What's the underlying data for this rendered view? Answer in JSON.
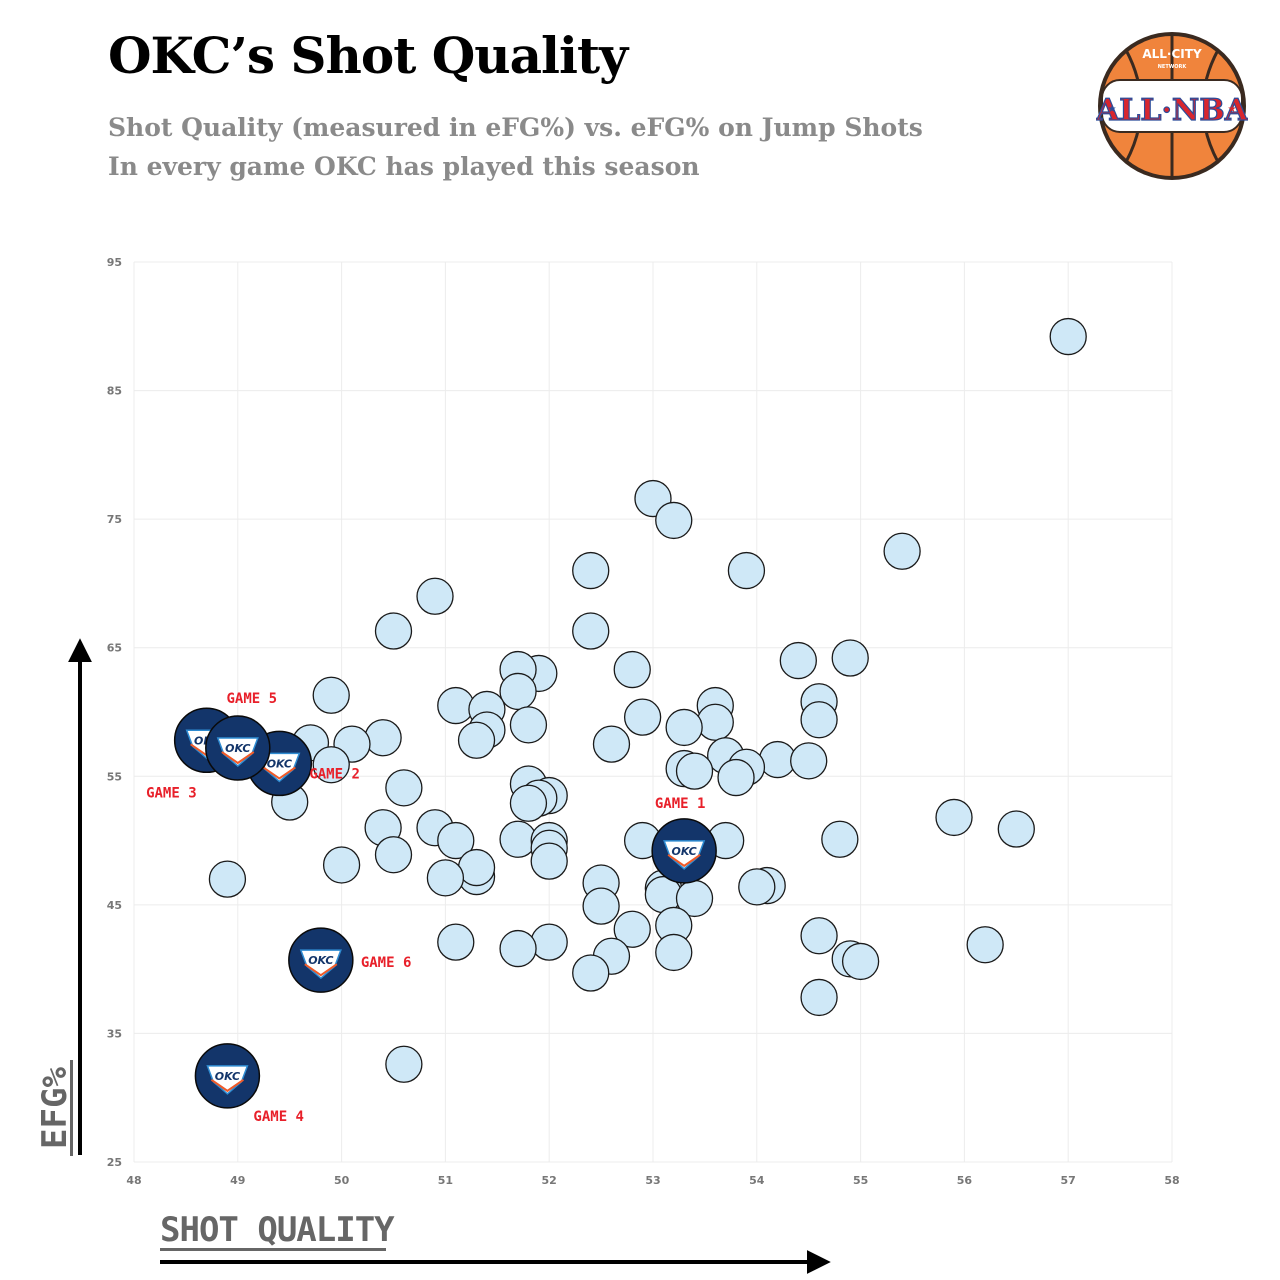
{
  "header": {
    "title": "OKC’s Shot Quality",
    "subtitle_line1": "Shot Quality (measured in eFG%) vs. eFG% on Jump Shots",
    "subtitle_line2": "In every game OKC has played this season"
  },
  "logo": {
    "top_text": "ALL·CITY",
    "small_text": "NETWORK",
    "main_text": "ALL·NBA",
    "colors": {
      "ball": "#f0843c",
      "seams": "#3a2a20",
      "red": "#d8262e",
      "blue": "#2b4c9a"
    }
  },
  "colors": {
    "point_fill": "#cfe8f7",
    "point_stroke": "#1a1a1a",
    "okc_navy": "#13356a",
    "okc_orange": "#f05a28",
    "okc_blue": "#2e8bd1",
    "label_red": "#e8202a",
    "grid": "#ececec",
    "axis_text": "#777777"
  },
  "chart_data": {
    "type": "scatter",
    "xlabel": "SHOT QUALITY",
    "ylabel": "EFG%",
    "xlim": [
      48,
      58
    ],
    "ylim": [
      25,
      95
    ],
    "xticks": [
      48,
      49,
      50,
      51,
      52,
      53,
      54,
      55,
      56,
      57,
      58
    ],
    "yticks": [
      25,
      35,
      45,
      55,
      65,
      75,
      85,
      95
    ],
    "grid": true,
    "series": [
      {
        "points": [
          [
            57.0,
            89.2
          ],
          [
            53.0,
            76.6
          ],
          [
            53.2,
            74.9
          ],
          [
            55.4,
            72.5
          ],
          [
            52.4,
            71.0
          ],
          [
            53.9,
            71.0
          ],
          [
            50.9,
            69.0
          ],
          [
            50.5,
            66.3
          ],
          [
            52.4,
            66.3
          ],
          [
            54.4,
            64.0
          ],
          [
            54.9,
            64.2
          ],
          [
            52.8,
            63.3
          ],
          [
            51.9,
            63.0
          ],
          [
            51.7,
            63.3
          ],
          [
            51.7,
            61.6
          ],
          [
            49.9,
            61.3
          ],
          [
            54.6,
            60.8
          ],
          [
            51.1,
            60.5
          ],
          [
            53.6,
            60.5
          ],
          [
            54.6,
            59.4
          ],
          [
            51.4,
            60.2
          ],
          [
            52.9,
            59.6
          ],
          [
            53.6,
            59.2
          ],
          [
            51.8,
            59.0
          ],
          [
            53.3,
            58.8
          ],
          [
            51.4,
            58.6
          ],
          [
            51.3,
            57.8
          ],
          [
            50.4,
            58.0
          ],
          [
            50.1,
            57.5
          ],
          [
            49.7,
            57.6
          ],
          [
            52.6,
            57.5
          ],
          [
            53.7,
            56.6
          ],
          [
            54.2,
            56.3
          ],
          [
            54.5,
            56.2
          ],
          [
            49.9,
            55.9
          ],
          [
            53.3,
            55.6
          ],
          [
            53.9,
            55.7
          ],
          [
            53.8,
            54.9
          ],
          [
            53.4,
            55.4
          ],
          [
            51.8,
            54.4
          ],
          [
            52.0,
            53.5
          ],
          [
            51.9,
            53.3
          ],
          [
            50.6,
            54.1
          ],
          [
            51.8,
            52.9
          ],
          [
            49.5,
            53.0
          ],
          [
            55.9,
            51.8
          ],
          [
            56.5,
            50.9
          ],
          [
            50.4,
            51.0
          ],
          [
            50.9,
            51.0
          ],
          [
            51.1,
            50.0
          ],
          [
            51.7,
            50.1
          ],
          [
            52.0,
            50.0
          ],
          [
            52.9,
            50.0
          ],
          [
            53.7,
            50.0
          ],
          [
            54.8,
            50.1
          ],
          [
            52.0,
            49.4
          ],
          [
            50.5,
            48.9
          ],
          [
            50.0,
            48.1
          ],
          [
            52.0,
            48.4
          ],
          [
            51.3,
            47.2
          ],
          [
            51.3,
            47.9
          ],
          [
            48.9,
            47.0
          ],
          [
            51.0,
            47.1
          ],
          [
            52.5,
            46.7
          ],
          [
            53.1,
            46.3
          ],
          [
            54.1,
            46.5
          ],
          [
            54.0,
            46.4
          ],
          [
            53.1,
            45.8
          ],
          [
            53.4,
            45.5
          ],
          [
            52.5,
            44.9
          ],
          [
            52.8,
            43.1
          ],
          [
            53.2,
            43.4
          ],
          [
            54.6,
            42.6
          ],
          [
            56.2,
            41.9
          ],
          [
            51.1,
            42.1
          ],
          [
            52.0,
            42.1
          ],
          [
            51.7,
            41.6
          ],
          [
            53.2,
            41.3
          ],
          [
            52.6,
            41.0
          ],
          [
            54.9,
            40.8
          ],
          [
            55.0,
            40.6
          ],
          [
            52.4,
            39.7
          ],
          [
            54.6,
            37.8
          ],
          [
            50.6,
            32.6
          ]
        ]
      },
      {
        "type": "team-logo",
        "logo_text": "OKC",
        "points": [
          {
            "x": 53.3,
            "y": 49.2,
            "label": "GAME 1"
          },
          {
            "x": 49.4,
            "y": 56.0,
            "label": "GAME 2"
          },
          {
            "x": 48.7,
            "y": 57.8,
            "label": "GAME 3"
          },
          {
            "x": 48.9,
            "y": 31.7,
            "label": "GAME 4"
          },
          {
            "x": 49.0,
            "y": 57.2,
            "label": "GAME 5"
          },
          {
            "x": 49.8,
            "y": 40.7,
            "label": "GAME 6"
          }
        ]
      }
    ]
  }
}
